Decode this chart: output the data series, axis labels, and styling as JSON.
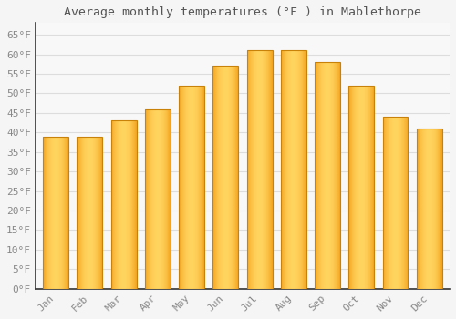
{
  "title": "Average monthly temperatures (°F ) in Mablethorpe",
  "months": [
    "Jan",
    "Feb",
    "Mar",
    "Apr",
    "May",
    "Jun",
    "Jul",
    "Aug",
    "Sep",
    "Oct",
    "Nov",
    "Dec"
  ],
  "values": [
    39,
    39,
    43,
    46,
    52,
    57,
    61,
    61,
    58,
    52,
    44,
    41
  ],
  "bar_color_left": "#F5A623",
  "bar_color_center": "#FFD45E",
  "bar_color_right": "#F5A623",
  "bar_edge_color": "#C8820A",
  "background_color": "#F5F5F5",
  "plot_bg_color": "#F8F8F8",
  "grid_color": "#DDDDDD",
  "ytick_labels": [
    "0°F",
    "5°F",
    "10°F",
    "15°F",
    "20°F",
    "25°F",
    "30°F",
    "35°F",
    "40°F",
    "45°F",
    "50°F",
    "55°F",
    "60°F",
    "65°F"
  ],
  "ytick_values": [
    0,
    5,
    10,
    15,
    20,
    25,
    30,
    35,
    40,
    45,
    50,
    55,
    60,
    65
  ],
  "ylim": [
    0,
    68
  ],
  "title_fontsize": 9.5,
  "tick_fontsize": 8,
  "title_color": "#555555",
  "tick_color": "#888888"
}
